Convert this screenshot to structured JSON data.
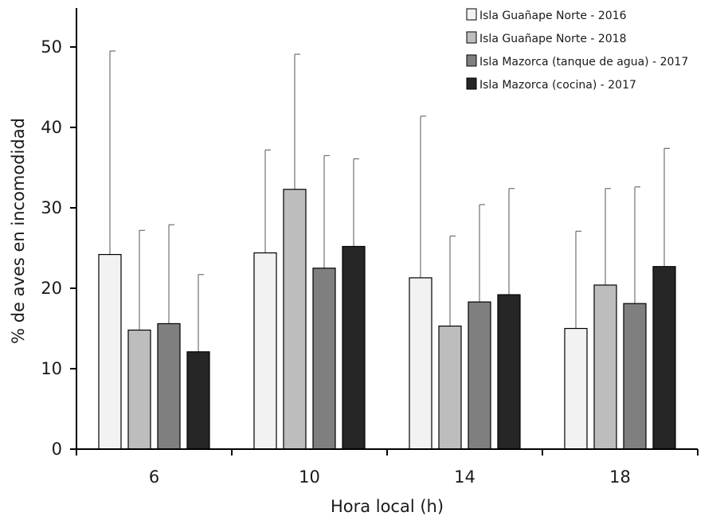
{
  "chart_data": {
    "type": "bar",
    "title": "",
    "xlabel": "Hora local (h)",
    "ylabel": "% de aves en incomodidad",
    "ylim": [
      0,
      53
    ],
    "yticks": [
      0,
      10,
      20,
      30,
      40,
      50
    ],
    "categories": [
      "6",
      "10",
      "14",
      "18"
    ],
    "grid": false,
    "legend_position": "top-right",
    "error_bars": "upper",
    "series": [
      {
        "name": "Isla Guañape Norte - 2016",
        "color": "#f2f2f2",
        "values": [
          24.2,
          24.4,
          21.3,
          15.0
        ],
        "error_upper": [
          49.5,
          37.2,
          41.4,
          27.1
        ]
      },
      {
        "name": "Isla Guañape Norte - 2018",
        "color": "#bdbdbd",
        "values": [
          14.8,
          32.3,
          15.3,
          20.4
        ],
        "error_upper": [
          27.2,
          49.1,
          26.5,
          32.4
        ]
      },
      {
        "name": "Isla Mazorca (tanque de agua) - 2017",
        "color": "#7f7f7f",
        "values": [
          15.6,
          22.5,
          18.3,
          18.1
        ],
        "error_upper": [
          27.9,
          36.5,
          30.4,
          32.6
        ]
      },
      {
        "name": "Isla Mazorca (cocina) - 2017",
        "color": "#262626",
        "values": [
          12.1,
          25.2,
          19.2,
          22.7
        ],
        "error_upper": [
          21.7,
          36.1,
          32.4,
          37.4
        ]
      }
    ]
  }
}
